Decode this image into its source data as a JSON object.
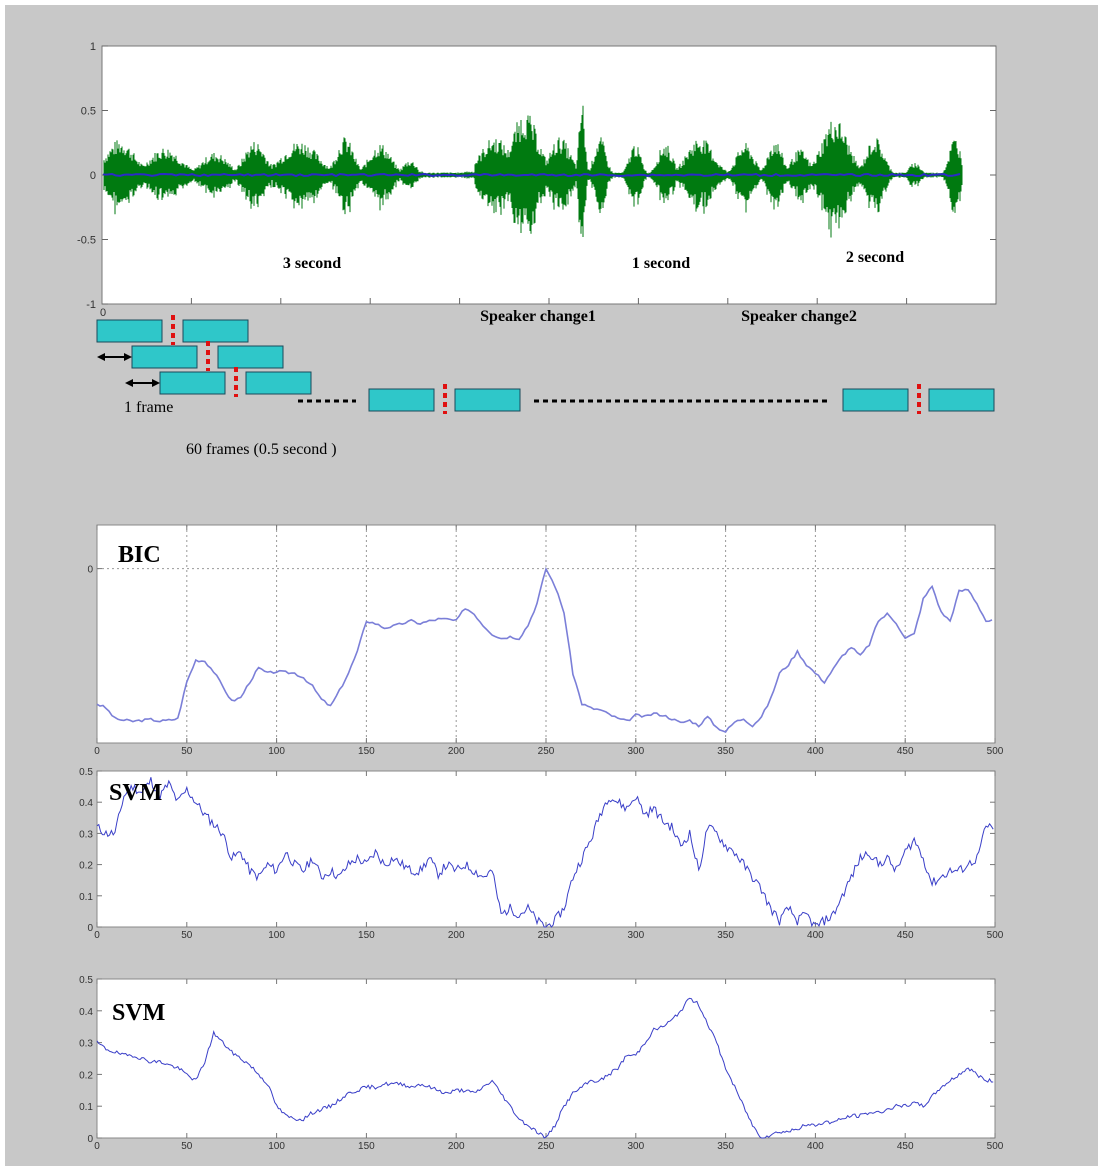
{
  "chart_data": [
    {
      "type": "line",
      "id": "waveform",
      "ylim": [
        -1,
        1
      ],
      "xlim": [
        0,
        500
      ],
      "yticks": [
        "1",
        "0.5",
        "0",
        "-0.5",
        "-1"
      ],
      "xticks": [
        "0"
      ],
      "annotations": {
        "segment1": "3 second",
        "segment2": "1 second",
        "segment3": "2 second",
        "change1": "Speaker change1",
        "change2": "Speaker change2"
      },
      "color": "#007a10"
    },
    {
      "type": "diagram",
      "id": "frames",
      "frame_label": "1 frame",
      "frames_label": "60  frames (0.5  second )",
      "box_color": "#2fc7c9",
      "divider_color": "#e01010"
    },
    {
      "type": "line",
      "id": "bic",
      "title": "BIC",
      "x": [
        0,
        5,
        10,
        15,
        20,
        25,
        30,
        35,
        40,
        45,
        50,
        55,
        60,
        65,
        70,
        75,
        80,
        85,
        90,
        95,
        100,
        105,
        110,
        115,
        120,
        125,
        130,
        135,
        140,
        145,
        150,
        155,
        160,
        165,
        170,
        175,
        180,
        185,
        190,
        195,
        200,
        205,
        210,
        215,
        220,
        225,
        230,
        235,
        240,
        245,
        250,
        255,
        260,
        265,
        270,
        275,
        280,
        285,
        290,
        295,
        300,
        305,
        310,
        315,
        320,
        325,
        330,
        335,
        340,
        345,
        350,
        355,
        360,
        365,
        370,
        375,
        380,
        385,
        390,
        395,
        400,
        405,
        410,
        415,
        420,
        425,
        430,
        435,
        440,
        445,
        450,
        455,
        460,
        465,
        470,
        475,
        480,
        485,
        490,
        495
      ],
      "y": [
        -1.55,
        -1.6,
        -1.72,
        -1.74,
        -1.75,
        -1.74,
        -1.73,
        -1.75,
        -1.74,
        -1.72,
        -1.3,
        -1.05,
        -1.06,
        -1.18,
        -1.35,
        -1.52,
        -1.48,
        -1.3,
        -1.14,
        -1.2,
        -1.18,
        -1.19,
        -1.2,
        -1.25,
        -1.35,
        -1.5,
        -1.58,
        -1.4,
        -1.2,
        -0.95,
        -0.6,
        -0.63,
        -0.68,
        -0.66,
        -0.63,
        -0.6,
        -0.63,
        -0.6,
        -0.58,
        -0.58,
        -0.6,
        -0.45,
        -0.52,
        -0.65,
        -0.75,
        -0.8,
        -0.78,
        -0.8,
        -0.65,
        -0.4,
        0.0,
        -0.2,
        -0.5,
        -1.2,
        -1.55,
        -1.6,
        -1.62,
        -1.67,
        -1.72,
        -1.75,
        -1.68,
        -1.7,
        -1.66,
        -1.68,
        -1.72,
        -1.77,
        -1.74,
        -1.8,
        -1.7,
        -1.82,
        -1.87,
        -1.76,
        -1.72,
        -1.8,
        -1.7,
        -1.5,
        -1.2,
        -1.1,
        -0.95,
        -1.1,
        -1.2,
        -1.3,
        -1.15,
        -1.0,
        -0.9,
        -1.0,
        -0.87,
        -0.6,
        -0.52,
        -0.62,
        -0.8,
        -0.75,
        -0.35,
        -0.2,
        -0.5,
        -0.6,
        -0.26,
        -0.24,
        -0.4,
        -0.6
      ],
      "ylim": [
        -2.0,
        0.5
      ],
      "xticks": [
        "0",
        "50",
        "100",
        "150",
        "200",
        "250",
        "300",
        "350",
        "400",
        "450",
        "500"
      ],
      "yticks": [
        "0"
      ],
      "grid": true,
      "color": "#7b7fd8"
    },
    {
      "type": "line",
      "id": "svm1",
      "title": "SVM",
      "x": [
        0,
        5,
        10,
        15,
        20,
        25,
        30,
        35,
        40,
        45,
        50,
        55,
        60,
        65,
        70,
        75,
        80,
        85,
        90,
        95,
        100,
        105,
        110,
        115,
        120,
        125,
        130,
        135,
        140,
        145,
        150,
        155,
        160,
        165,
        170,
        175,
        180,
        185,
        190,
        195,
        200,
        205,
        210,
        215,
        220,
        225,
        230,
        235,
        240,
        245,
        250,
        255,
        260,
        265,
        270,
        275,
        280,
        285,
        290,
        295,
        300,
        305,
        310,
        315,
        320,
        325,
        330,
        335,
        340,
        345,
        350,
        355,
        360,
        365,
        370,
        375,
        380,
        385,
        390,
        395,
        400,
        405,
        410,
        415,
        420,
        425,
        430,
        435,
        440,
        445,
        450,
        455,
        460,
        465,
        470,
        475,
        480,
        485,
        490,
        495
      ],
      "y": [
        0.32,
        0.3,
        0.3,
        0.42,
        0.45,
        0.43,
        0.47,
        0.42,
        0.46,
        0.4,
        0.44,
        0.4,
        0.36,
        0.33,
        0.3,
        0.22,
        0.24,
        0.18,
        0.16,
        0.2,
        0.18,
        0.24,
        0.2,
        0.18,
        0.22,
        0.16,
        0.18,
        0.16,
        0.2,
        0.22,
        0.2,
        0.24,
        0.2,
        0.22,
        0.2,
        0.18,
        0.18,
        0.22,
        0.17,
        0.2,
        0.18,
        0.2,
        0.18,
        0.16,
        0.18,
        0.04,
        0.06,
        0.04,
        0.06,
        0.02,
        0.0,
        0.02,
        0.06,
        0.16,
        0.22,
        0.28,
        0.36,
        0.42,
        0.4,
        0.38,
        0.42,
        0.36,
        0.38,
        0.34,
        0.32,
        0.26,
        0.3,
        0.18,
        0.32,
        0.3,
        0.26,
        0.24,
        0.2,
        0.16,
        0.12,
        0.06,
        0.02,
        0.06,
        0.02,
        0.04,
        0.0,
        0.02,
        0.04,
        0.1,
        0.16,
        0.22,
        0.24,
        0.2,
        0.22,
        0.18,
        0.24,
        0.28,
        0.22,
        0.14,
        0.16,
        0.18,
        0.18,
        0.2,
        0.22,
        0.32
      ],
      "ylim": [
        0,
        0.5
      ],
      "xticks": [
        "0",
        "50",
        "100",
        "150",
        "200",
        "250",
        "300",
        "350",
        "400",
        "450",
        "500"
      ],
      "yticks": [
        "0.5",
        "0.4",
        "0.3",
        "0.2",
        "0.1",
        "0"
      ],
      "color": "#3a3fc8"
    },
    {
      "type": "line",
      "id": "svm2",
      "title": "SVM",
      "x": [
        0,
        5,
        10,
        15,
        20,
        25,
        30,
        35,
        40,
        45,
        50,
        55,
        60,
        65,
        70,
        75,
        80,
        85,
        90,
        95,
        100,
        105,
        110,
        115,
        120,
        125,
        130,
        135,
        140,
        145,
        150,
        155,
        160,
        165,
        170,
        175,
        180,
        185,
        190,
        195,
        200,
        205,
        210,
        215,
        220,
        225,
        230,
        235,
        240,
        245,
        250,
        255,
        260,
        265,
        270,
        275,
        280,
        285,
        290,
        295,
        300,
        305,
        310,
        315,
        320,
        325,
        330,
        335,
        340,
        345,
        350,
        355,
        360,
        365,
        370,
        375,
        380,
        385,
        390,
        395,
        400,
        405,
        410,
        415,
        420,
        425,
        430,
        435,
        440,
        445,
        450,
        455,
        460,
        465,
        470,
        475,
        480,
        485,
        490,
        495
      ],
      "y": [
        0.3,
        0.28,
        0.27,
        0.26,
        0.26,
        0.25,
        0.24,
        0.24,
        0.23,
        0.22,
        0.2,
        0.18,
        0.24,
        0.33,
        0.3,
        0.27,
        0.25,
        0.23,
        0.2,
        0.17,
        0.1,
        0.07,
        0.06,
        0.06,
        0.08,
        0.09,
        0.1,
        0.12,
        0.14,
        0.15,
        0.16,
        0.16,
        0.17,
        0.17,
        0.17,
        0.16,
        0.17,
        0.16,
        0.15,
        0.14,
        0.15,
        0.15,
        0.14,
        0.16,
        0.18,
        0.14,
        0.1,
        0.06,
        0.04,
        0.02,
        0.0,
        0.04,
        0.1,
        0.14,
        0.16,
        0.18,
        0.18,
        0.2,
        0.22,
        0.26,
        0.26,
        0.3,
        0.34,
        0.35,
        0.37,
        0.4,
        0.44,
        0.42,
        0.36,
        0.3,
        0.22,
        0.16,
        0.1,
        0.04,
        0.0,
        0.01,
        0.02,
        0.02,
        0.03,
        0.04,
        0.04,
        0.05,
        0.05,
        0.06,
        0.07,
        0.07,
        0.08,
        0.08,
        0.09,
        0.1,
        0.1,
        0.11,
        0.1,
        0.13,
        0.16,
        0.18,
        0.2,
        0.22,
        0.2,
        0.18
      ],
      "ylim": [
        0,
        0.5
      ],
      "xticks": [
        "0",
        "50",
        "100",
        "150",
        "200",
        "250",
        "300",
        "350",
        "400",
        "450",
        "500"
      ],
      "yticks": [
        "0.5",
        "0.4",
        "0.3",
        "0.2",
        "0.1",
        "0"
      ],
      "color": "#3a3fc8"
    }
  ]
}
